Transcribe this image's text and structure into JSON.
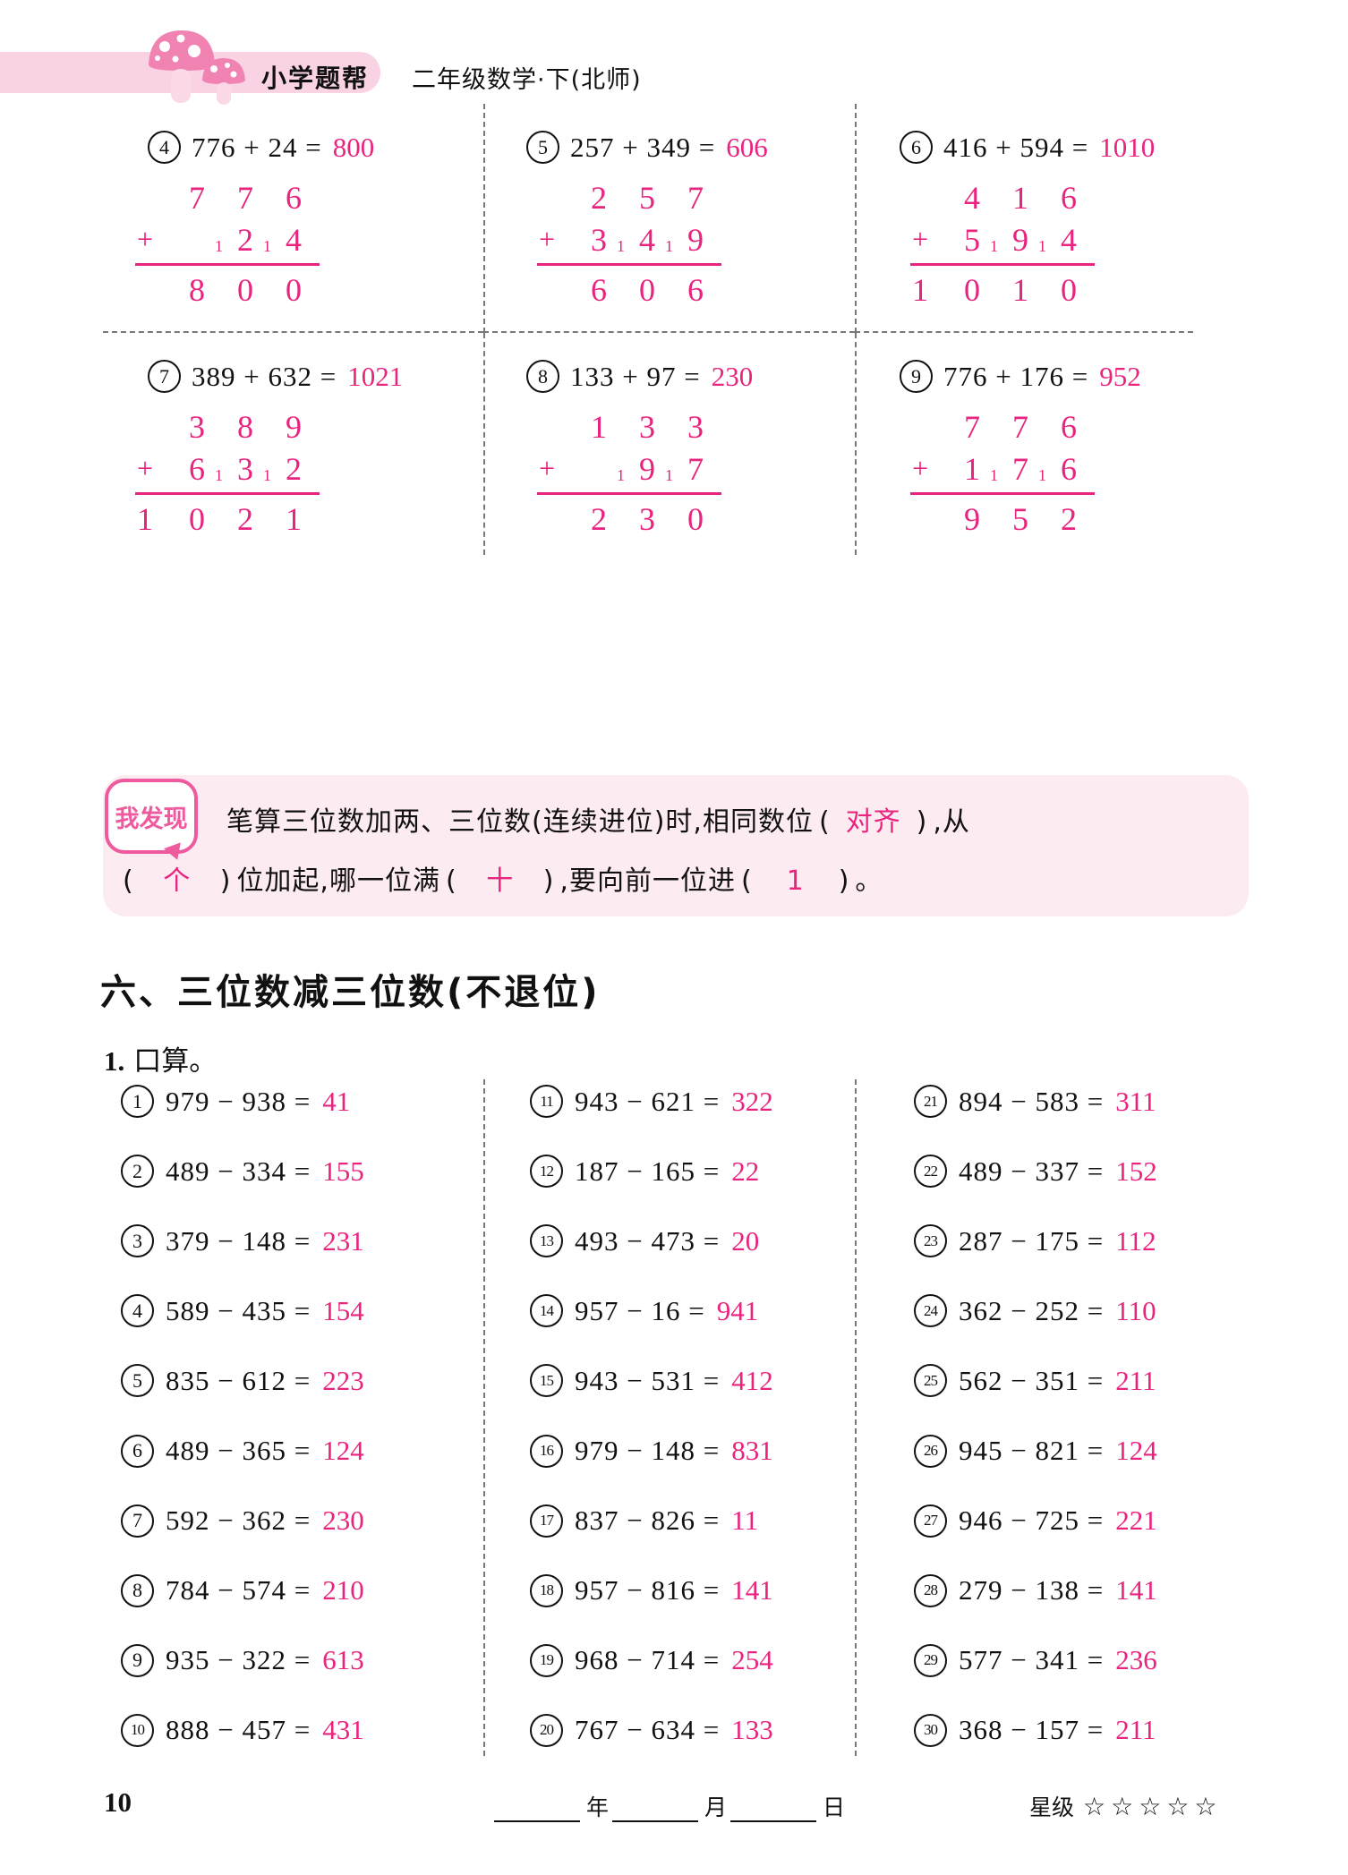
{
  "header": {
    "brand": "小学题帮",
    "edition": "二年级数学·下(北师)"
  },
  "written": {
    "plus": "+",
    "items": [
      {
        "num": "4",
        "expr": "776 + 24 =",
        "ans": "800",
        "work": {
          "top": [
            "",
            "7",
            "7",
            "6"
          ],
          "addend": [
            "",
            "",
            "2",
            "4"
          ],
          "carries": [
            "",
            "",
            "1",
            "1"
          ],
          "sum_lead": "",
          "sum": [
            "8",
            "0",
            "0"
          ]
        }
      },
      {
        "num": "5",
        "expr": "257 + 349 =",
        "ans": "606",
        "work": {
          "top": [
            "",
            "2",
            "5",
            "7"
          ],
          "addend": [
            "",
            "3",
            "4",
            "9"
          ],
          "carries": [
            "",
            "",
            "1",
            "1"
          ],
          "sum_lead": "",
          "sum": [
            "6",
            "0",
            "6"
          ]
        }
      },
      {
        "num": "6",
        "expr": "416 + 594 =",
        "ans": "1010",
        "work": {
          "top": [
            "",
            "4",
            "1",
            "6"
          ],
          "addend": [
            "",
            "5",
            "9",
            "4"
          ],
          "carries": [
            "",
            "",
            "1",
            "1"
          ],
          "sum_lead": "1",
          "sum": [
            "0",
            "1",
            "0"
          ]
        }
      },
      {
        "num": "7",
        "expr": "389 + 632 =",
        "ans": "1021",
        "work": {
          "top": [
            "",
            "3",
            "8",
            "9"
          ],
          "addend": [
            "",
            "6",
            "3",
            "2"
          ],
          "carries": [
            "",
            "",
            "1",
            "1"
          ],
          "sum_lead": "1",
          "sum": [
            "0",
            "2",
            "1"
          ]
        }
      },
      {
        "num": "8",
        "expr": "133 + 97 =",
        "ans": "230",
        "work": {
          "top": [
            "",
            "1",
            "3",
            "3"
          ],
          "addend": [
            "",
            "",
            "9",
            "7"
          ],
          "carries": [
            "",
            "",
            "1",
            "1"
          ],
          "sum_lead": "",
          "sum": [
            "2",
            "3",
            "0"
          ]
        }
      },
      {
        "num": "9",
        "expr": "776 + 176 =",
        "ans": "952",
        "work": {
          "top": [
            "",
            "7",
            "7",
            "6"
          ],
          "addend": [
            "",
            "1",
            "7",
            "6"
          ],
          "carries": [
            "",
            "",
            "1",
            "1"
          ],
          "sum_lead": "",
          "sum": [
            "9",
            "5",
            "2"
          ]
        }
      }
    ]
  },
  "discovery": {
    "label": "我发现",
    "blank_open": "(",
    "blank_close": ")",
    "segments": [
      {
        "type": "text",
        "t": "笔算三位数加两、三位数(连续进位)时,相同数位"
      },
      {
        "type": "blank",
        "t": "对齐"
      },
      {
        "type": "text",
        "t": ",从",
        "br": true
      },
      {
        "type": "blank",
        "t": "个"
      },
      {
        "type": "text",
        "t": "位加起,哪一位满"
      },
      {
        "type": "blank",
        "t": "十"
      },
      {
        "type": "text",
        "t": ",要向前一位进"
      },
      {
        "type": "blank",
        "t": "1"
      },
      {
        "type": "text",
        "t": "。"
      }
    ]
  },
  "section": {
    "title": "六、三位数减三位数(不退位)",
    "subtitle_num": "1.",
    "subtitle": "口算。"
  },
  "oral": {
    "columns": [
      {
        "items": [
          {
            "num": "1",
            "expr": "979 − 938 =",
            "ans": "41"
          },
          {
            "num": "2",
            "expr": "489 − 334 =",
            "ans": "155"
          },
          {
            "num": "3",
            "expr": "379 − 148 =",
            "ans": "231"
          },
          {
            "num": "4",
            "expr": "589 − 435 =",
            "ans": "154"
          },
          {
            "num": "5",
            "expr": "835 − 612 =",
            "ans": "223"
          },
          {
            "num": "6",
            "expr": "489 − 365 =",
            "ans": "124"
          },
          {
            "num": "7",
            "expr": "592 − 362 =",
            "ans": "230"
          },
          {
            "num": "8",
            "expr": "784 − 574 =",
            "ans": "210"
          },
          {
            "num": "9",
            "expr": "935 − 322 =",
            "ans": "613"
          },
          {
            "num": "10",
            "expr": "888 − 457 =",
            "ans": "431"
          }
        ]
      },
      {
        "items": [
          {
            "num": "11",
            "expr": "943 − 621 =",
            "ans": "322"
          },
          {
            "num": "12",
            "expr": "187 − 165 =",
            "ans": "22"
          },
          {
            "num": "13",
            "expr": "493 − 473 =",
            "ans": "20"
          },
          {
            "num": "14",
            "expr": "957 − 16 =",
            "ans": "941"
          },
          {
            "num": "15",
            "expr": "943 − 531 =",
            "ans": "412"
          },
          {
            "num": "16",
            "expr": "979 − 148 =",
            "ans": "831"
          },
          {
            "num": "17",
            "expr": "837 − 826 =",
            "ans": "11"
          },
          {
            "num": "18",
            "expr": "957 − 816 =",
            "ans": "141"
          },
          {
            "num": "19",
            "expr": "968 − 714 =",
            "ans": "254"
          },
          {
            "num": "20",
            "expr": "767 − 634 =",
            "ans": "133"
          }
        ]
      },
      {
        "items": [
          {
            "num": "21",
            "expr": "894 − 583 =",
            "ans": "311"
          },
          {
            "num": "22",
            "expr": "489 − 337 =",
            "ans": "152"
          },
          {
            "num": "23",
            "expr": "287 − 175 =",
            "ans": "112"
          },
          {
            "num": "24",
            "expr": "362 − 252 =",
            "ans": "110"
          },
          {
            "num": "25",
            "expr": "562 − 351 =",
            "ans": "211"
          },
          {
            "num": "26",
            "expr": "945 − 821 =",
            "ans": "124"
          },
          {
            "num": "27",
            "expr": "946 − 725 =",
            "ans": "221"
          },
          {
            "num": "28",
            "expr": "279 − 138 =",
            "ans": "141"
          },
          {
            "num": "29",
            "expr": "577 − 341 =",
            "ans": "236"
          },
          {
            "num": "30",
            "expr": "368 − 157 =",
            "ans": "211"
          }
        ]
      }
    ]
  },
  "footer": {
    "page": "10",
    "date_units": [
      "年",
      "月",
      "日"
    ],
    "star_label": "星级",
    "stars": "☆☆☆☆☆"
  }
}
